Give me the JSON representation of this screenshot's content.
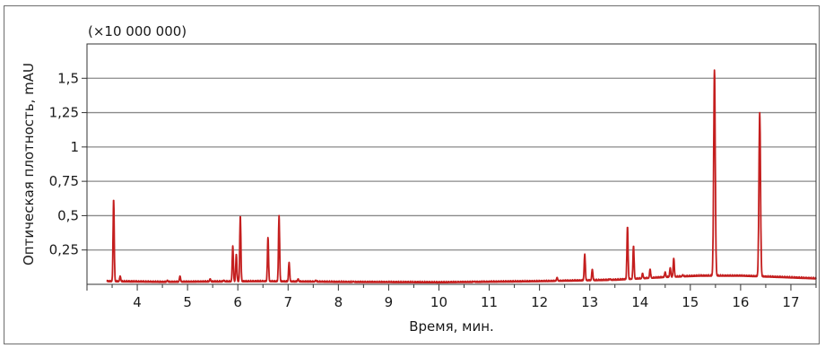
{
  "chart_data": {
    "type": "line",
    "multiplier_label": "(×10 000 000)",
    "xlabel": "Время, мин.",
    "ylabel": "Оптическая плотность, mAU",
    "xlim": [
      3.0,
      17.5
    ],
    "ylim": [
      0,
      1.75
    ],
    "x_ticks": [
      4,
      5,
      6,
      7,
      8,
      9,
      10,
      11,
      12,
      13,
      14,
      15,
      16,
      17
    ],
    "x_tick_labels": [
      "4",
      "5",
      "6",
      "7",
      "8",
      "9",
      "10",
      "11",
      "12",
      "13",
      "14",
      "15",
      "16",
      "17"
    ],
    "y_ticks": [
      0.25,
      0.5,
      0.75,
      1,
      1.25,
      1.5
    ],
    "y_tick_labels": [
      "0,25",
      "0,5",
      "0,75",
      "1",
      "1,25",
      "1,5"
    ],
    "grid": true,
    "line_color": "#c41e1e",
    "baseline": [
      [
        3.4,
        0.02
      ],
      [
        4.5,
        0.015
      ],
      [
        6.5,
        0.02
      ],
      [
        8.0,
        0.015
      ],
      [
        10.0,
        0.012
      ],
      [
        12.0,
        0.02
      ],
      [
        13.5,
        0.03
      ],
      [
        14.5,
        0.05
      ],
      [
        15.2,
        0.06
      ],
      [
        16.0,
        0.06
      ],
      [
        16.8,
        0.05
      ],
      [
        17.5,
        0.04
      ]
    ],
    "peaks": [
      {
        "x": 3.53,
        "y": 0.62
      },
      {
        "x": 3.66,
        "y": 0.06
      },
      {
        "x": 4.6,
        "y": 0.03
      },
      {
        "x": 4.85,
        "y": 0.06
      },
      {
        "x": 5.45,
        "y": 0.04
      },
      {
        "x": 5.72,
        "y": 0.03
      },
      {
        "x": 5.9,
        "y": 0.28
      },
      {
        "x": 5.97,
        "y": 0.22
      },
      {
        "x": 6.05,
        "y": 0.5
      },
      {
        "x": 6.6,
        "y": 0.34
      },
      {
        "x": 6.82,
        "y": 0.5
      },
      {
        "x": 7.02,
        "y": 0.16
      },
      {
        "x": 7.2,
        "y": 0.04
      },
      {
        "x": 7.55,
        "y": 0.03
      },
      {
        "x": 8.3,
        "y": 0.02
      },
      {
        "x": 10.7,
        "y": 0.02
      },
      {
        "x": 12.35,
        "y": 0.05
      },
      {
        "x": 12.9,
        "y": 0.22
      },
      {
        "x": 13.05,
        "y": 0.11
      },
      {
        "x": 13.4,
        "y": 0.04
      },
      {
        "x": 13.75,
        "y": 0.42
      },
      {
        "x": 13.87,
        "y": 0.28
      },
      {
        "x": 14.05,
        "y": 0.08
      },
      {
        "x": 14.2,
        "y": 0.11
      },
      {
        "x": 14.5,
        "y": 0.09
      },
      {
        "x": 14.6,
        "y": 0.12
      },
      {
        "x": 14.67,
        "y": 0.19
      },
      {
        "x": 14.85,
        "y": 0.07
      },
      {
        "x": 15.48,
        "y": 1.56
      },
      {
        "x": 16.38,
        "y": 1.25
      }
    ]
  }
}
